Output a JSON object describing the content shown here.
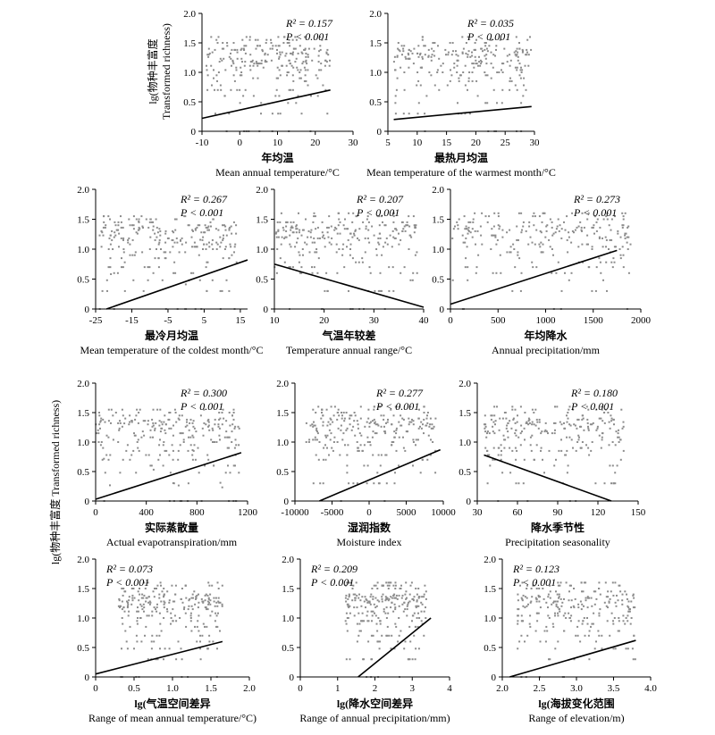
{
  "figure": {
    "ylabel_cn_top": "lg(物种丰富度",
    "ylabel_en_top": "Transformed richness)",
    "ylabel_cn_mid": "lg(物种丰富度  Transformed richness)"
  },
  "colors": {
    "points": "#8c8c8c",
    "line": "#000000",
    "axis": "#000000"
  },
  "chart_data": [
    {
      "id": "p1",
      "type": "scatter",
      "xlabel_cn": "年均温",
      "xlabel_en": "Mean annual temperature/°C",
      "xlim": [
        -10,
        30
      ],
      "xticks": [
        "-10",
        "0",
        "10",
        "20",
        "30"
      ],
      "xtick_vals": [
        -10,
        0,
        10,
        20,
        30
      ],
      "ylim": [
        0,
        2
      ],
      "yticks": [
        "0",
        "0.5",
        "1.0",
        "1.5",
        "2.0"
      ],
      "r2": "R² = 0.157",
      "p": "P < 0.001",
      "fit": {
        "x": [
          -10,
          24
        ],
        "y": [
          0.22,
          0.7
        ]
      },
      "points_range": {
        "x": [
          -9,
          24
        ],
        "y": [
          0,
          1.62
        ]
      }
    },
    {
      "id": "p2",
      "type": "scatter",
      "xlabel_cn": "最热月均温",
      "xlabel_en": "Mean temperature of the warmest month/°C",
      "xlim": [
        5,
        30
      ],
      "xticks": [
        "5",
        "10",
        "15",
        "20",
        "25",
        "30"
      ],
      "xtick_vals": [
        5,
        10,
        15,
        20,
        25,
        30
      ],
      "ylim": [
        0,
        2
      ],
      "yticks": [
        "0",
        "0.5",
        "1.0",
        "1.5",
        "2.0"
      ],
      "r2": "R² = 0.035",
      "p": "P < 0.001",
      "fit": {
        "x": [
          6,
          29.5
        ],
        "y": [
          0.2,
          0.42
        ]
      },
      "points_range": {
        "x": [
          6,
          29.5
        ],
        "y": [
          0,
          1.6
        ]
      }
    },
    {
      "id": "p3",
      "type": "scatter",
      "xlabel_cn": "最冷月均温",
      "xlabel_en": "Mean temperature of the coldest month/°C",
      "xlim": [
        -25,
        17
      ],
      "xticks": [
        "-25",
        "-15",
        "-5",
        "5",
        "15"
      ],
      "xtick_vals": [
        -25,
        -15,
        -5,
        5,
        15
      ],
      "ylim": [
        0,
        2
      ],
      "yticks": [
        "0",
        "0.5",
        "1.0",
        "1.5",
        "2.0"
      ],
      "r2": "R² = 0.267",
      "p": "P < 0.001",
      "fit": {
        "x": [
          -22,
          17
        ],
        "y": [
          0,
          0.82
        ]
      },
      "points_range": {
        "x": [
          -24,
          14
        ],
        "y": [
          0,
          1.55
        ]
      }
    },
    {
      "id": "p4",
      "type": "scatter",
      "xlabel_cn": "气温年较差",
      "xlabel_en": "Temperature annual range/°C",
      "xlim": [
        10,
        40
      ],
      "xticks": [
        "10",
        "20",
        "30",
        "40"
      ],
      "xtick_vals": [
        10,
        20,
        30,
        40
      ],
      "ylim": [
        0,
        2
      ],
      "yticks": [
        "0",
        "0.5",
        "1.0",
        "1.5",
        "2.0"
      ],
      "r2": "R² = 0.207",
      "p": "P < 0.001",
      "fit": {
        "x": [
          10,
          40
        ],
        "y": [
          0.75,
          0.03
        ]
      },
      "points_range": {
        "x": [
          10,
          39
        ],
        "y": [
          0,
          1.65
        ]
      }
    },
    {
      "id": "p5",
      "type": "scatter",
      "xlabel_cn": "年均降水",
      "xlabel_en": "Annual precipitation/mm",
      "xlim": [
        0,
        2000
      ],
      "xticks": [
        "0",
        "500",
        "1000",
        "1500",
        "2000"
      ],
      "xtick_vals": [
        0,
        500,
        1000,
        1500,
        2000
      ],
      "ylim": [
        0,
        2
      ],
      "yticks": [
        "0",
        "0.5",
        "1.0",
        "1.5",
        "2.0"
      ],
      "r2": "R² = 0.273",
      "p": "P < 0.001",
      "fit": {
        "x": [
          0,
          1750
        ],
        "y": [
          0.08,
          0.98
        ]
      },
      "points_range": {
        "x": [
          20,
          1900
        ],
        "y": [
          0,
          1.62
        ]
      }
    },
    {
      "id": "p6",
      "type": "scatter",
      "xlabel_cn": "实际蒸散量",
      "xlabel_en": "Actual evapotranspiration/mm",
      "xlim": [
        0,
        1200
      ],
      "xticks": [
        "0",
        "400",
        "800",
        "1200"
      ],
      "xtick_vals": [
        0,
        400,
        800,
        1200
      ],
      "ylim": [
        0,
        2
      ],
      "yticks": [
        "0",
        "0.5",
        "1.0",
        "1.5",
        "2.0"
      ],
      "r2": "R² = 0.300",
      "p": "P < 0.001",
      "fit": {
        "x": [
          0,
          1150
        ],
        "y": [
          0.03,
          0.82
        ]
      },
      "points_range": {
        "x": [
          0,
          1140
        ],
        "y": [
          0,
          1.55
        ]
      }
    },
    {
      "id": "p7",
      "type": "scatter",
      "xlabel_cn": "湿润指数",
      "xlabel_en": "Moisture index",
      "xlim": [
        -10000,
        10000
      ],
      "xticks": [
        "-10000",
        "-5000",
        "0",
        "5000",
        "10000"
      ],
      "xtick_vals": [
        -10000,
        -5000,
        0,
        5000,
        10000
      ],
      "ylim": [
        0,
        2
      ],
      "yticks": [
        "0",
        "0.5",
        "1.0",
        "1.5",
        "2.0"
      ],
      "r2": "R² = 0.277",
      "p": "P < 0.001",
      "fit": {
        "x": [
          -6700,
          9600
        ],
        "y": [
          0,
          0.87
        ]
      },
      "points_range": {
        "x": [
          -8500,
          9000
        ],
        "y": [
          0,
          1.6
        ]
      }
    },
    {
      "id": "p8",
      "type": "scatter",
      "xlabel_cn": "降水季节性",
      "xlabel_en": "Precipitation seasonality",
      "xlim": [
        30,
        150
      ],
      "xticks": [
        "30",
        "60",
        "90",
        "120",
        "150"
      ],
      "xtick_vals": [
        30,
        60,
        90,
        120,
        150
      ],
      "ylim": [
        0,
        2
      ],
      "yticks": [
        "0",
        "0.5",
        "1.0",
        "1.5",
        "2.0"
      ],
      "r2": "R² = 0.180",
      "p": "P < 0.001",
      "fit": {
        "x": [
          35,
          130
        ],
        "y": [
          0.78,
          0
        ]
      },
      "points_range": {
        "x": [
          35,
          140
        ],
        "y": [
          0,
          1.6
        ]
      }
    },
    {
      "id": "p9",
      "type": "scatter",
      "xlabel_cn": "lg(气温空间差异",
      "xlabel_en": "Range of mean annual temperature/°C)",
      "xlim": [
        0,
        2
      ],
      "xticks": [
        "0",
        "0.5",
        "1.0",
        "1.5",
        "2.0"
      ],
      "xtick_vals": [
        0,
        0.5,
        1,
        1.5,
        2
      ],
      "ylim": [
        0,
        2
      ],
      "yticks": [
        "0",
        "0.5",
        "1.0",
        "1.5",
        "2.0"
      ],
      "r2": "R² = 0.073",
      "p": "P < 0.001",
      "fit": {
        "x": [
          0,
          1.65
        ],
        "y": [
          0.05,
          0.6
        ]
      },
      "points_range": {
        "x": [
          0.3,
          1.65
        ],
        "y": [
          0,
          1.6
        ]
      }
    },
    {
      "id": "p10",
      "type": "scatter",
      "xlabel_cn": "lg(降水空间差异",
      "xlabel_en": "Range of annual precipitation/mm)",
      "xlim": [
        0,
        4
      ],
      "xticks": [
        "0",
        "1",
        "2",
        "3",
        "4"
      ],
      "xtick_vals": [
        0,
        1,
        2,
        3,
        4
      ],
      "ylim": [
        0,
        2
      ],
      "yticks": [
        "0",
        "0.5",
        "1.0",
        "1.5",
        "2.0"
      ],
      "r2": "R² = 0.209",
      "p": "P < 0.001",
      "fit": {
        "x": [
          1.55,
          3.5
        ],
        "y": [
          0,
          1
        ]
      },
      "points_range": {
        "x": [
          1.2,
          3.4
        ],
        "y": [
          0,
          1.6
        ]
      }
    },
    {
      "id": "p11",
      "type": "scatter",
      "xlabel_cn": "lg(海拔变化范围",
      "xlabel_en": "Range of elevation/m)",
      "xlim": [
        2,
        4
      ],
      "xticks": [
        "2.0",
        "2.5",
        "3.0",
        "3.5",
        "4.0"
      ],
      "xtick_vals": [
        2,
        2.5,
        3,
        3.5,
        4
      ],
      "ylim": [
        0,
        2
      ],
      "yticks": [
        "0",
        "0.5",
        "1.0",
        "1.5",
        "2.0"
      ],
      "r2": "R² = 0.123",
      "p": "P < 0.001",
      "fit": {
        "x": [
          2.1,
          3.8
        ],
        "y": [
          0,
          0.62
        ]
      },
      "points_range": {
        "x": [
          2.2,
          3.8
        ],
        "y": [
          0,
          1.65
        ]
      }
    }
  ]
}
